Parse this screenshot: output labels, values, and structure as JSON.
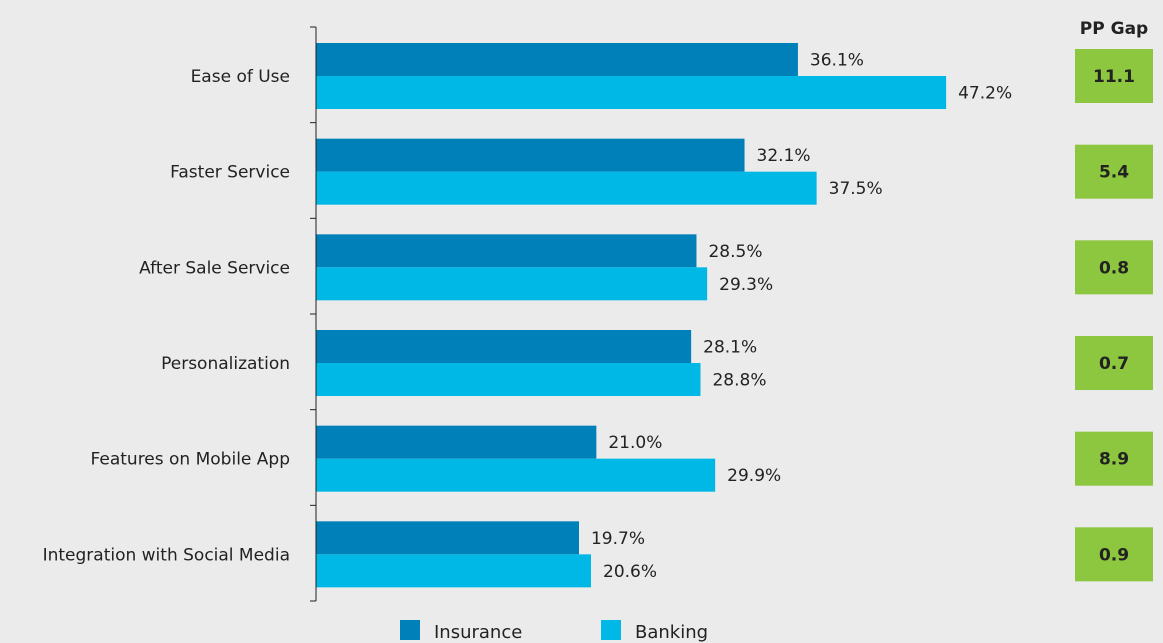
{
  "chart_data": {
    "type": "bar",
    "orientation": "horizontal",
    "title": "",
    "xlabel": "",
    "ylabel": "",
    "xlim": [
      0,
      50
    ],
    "grid": false,
    "legend_position": "bottom",
    "categories": [
      "Ease of Use",
      "Faster Service",
      "After Sale Service",
      "Personalization",
      "Features on Mobile App",
      "Integration with Social Media"
    ],
    "series": [
      {
        "name": "Insurance",
        "color": "#0080b8",
        "values": [
          36.1,
          32.1,
          28.5,
          28.1,
          21.0,
          19.7
        ],
        "labels": [
          "36.1%",
          "32.1%",
          "28.5%",
          "28.1%",
          "21.0%",
          "19.7%"
        ]
      },
      {
        "name": "Banking",
        "color": "#00b8e6",
        "values": [
          47.2,
          37.5,
          29.3,
          28.8,
          29.9,
          20.6
        ],
        "labels": [
          "47.2%",
          "37.5%",
          "29.3%",
          "28.8%",
          "29.9%",
          "20.6%"
        ]
      }
    ],
    "pp_gap": {
      "header": "PP Gap",
      "color": "#8dc63f",
      "values": [
        "11.1",
        "5.4",
        "0.8",
        "0.7",
        "8.9",
        "0.9"
      ]
    }
  }
}
